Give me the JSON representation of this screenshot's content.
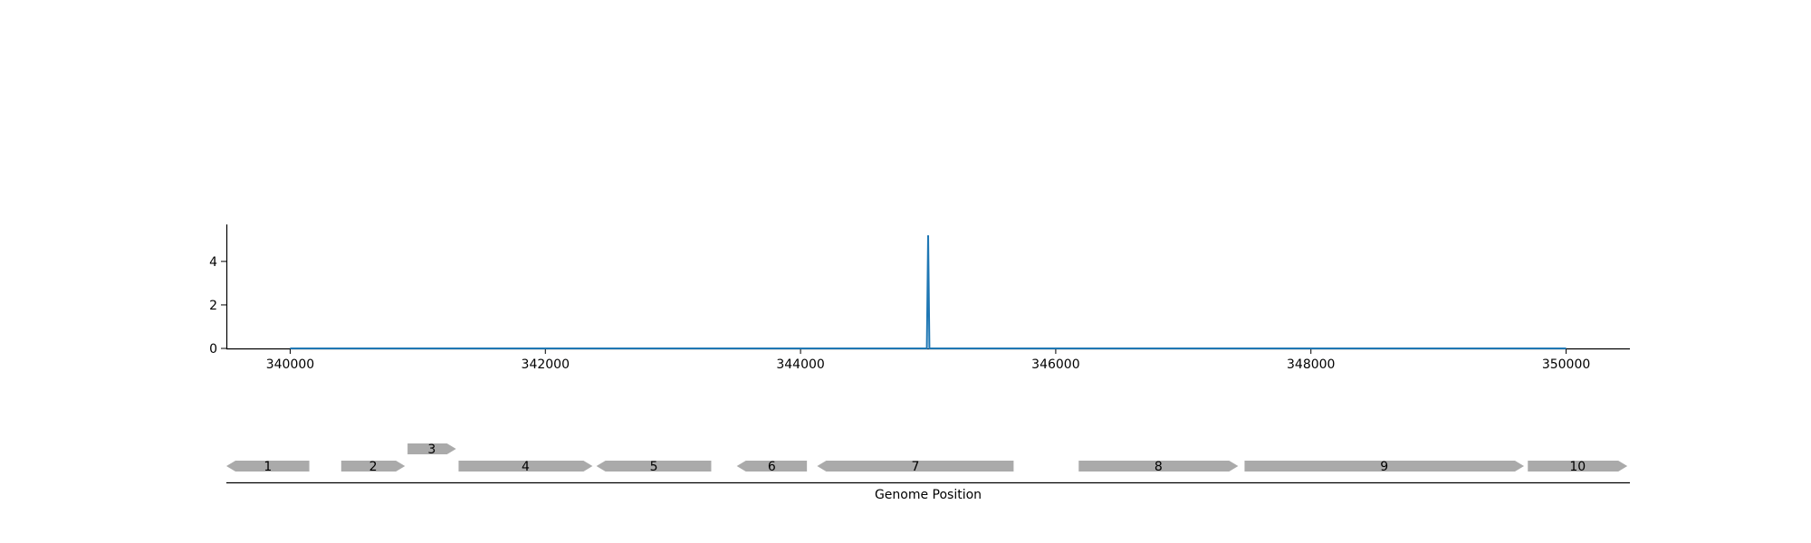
{
  "chart_data": [
    {
      "type": "line",
      "title": "",
      "xlabel": "",
      "ylabel": "",
      "xlim": [
        339500,
        350500
      ],
      "ylim": [
        0,
        5.7
      ],
      "x_ticks": [
        340000,
        342000,
        344000,
        346000,
        348000,
        350000
      ],
      "y_ticks": [
        0,
        2,
        4
      ],
      "grid": false,
      "series": [
        {
          "color": "#1f77b4",
          "points": [
            [
              340000,
              0
            ],
            [
              344990,
              0
            ],
            [
              345000,
              5.2
            ],
            [
              345010,
              0
            ],
            [
              350000,
              0
            ]
          ]
        }
      ]
    },
    {
      "type": "gene-map",
      "xlabel": "Genome Position",
      "xlim": [
        339500,
        350500
      ],
      "gene_color": "#aaaaaa",
      "genes": [
        {
          "label": "1",
          "start": 339500,
          "end": 340150,
          "strand": -1,
          "row": 0
        },
        {
          "label": "2",
          "start": 340400,
          "end": 340900,
          "strand": 1,
          "row": 0
        },
        {
          "label": "3",
          "start": 340920,
          "end": 341300,
          "strand": 1,
          "row": 1
        },
        {
          "label": "4",
          "start": 341320,
          "end": 342370,
          "strand": 1,
          "row": 0
        },
        {
          "label": "5",
          "start": 342400,
          "end": 343300,
          "strand": -1,
          "row": 0
        },
        {
          "label": "6",
          "start": 343500,
          "end": 344050,
          "strand": -1,
          "row": 0
        },
        {
          "label": "7",
          "start": 344130,
          "end": 345670,
          "strand": -1,
          "row": 0
        },
        {
          "label": "8",
          "start": 346180,
          "end": 347430,
          "strand": 1,
          "row": 0
        },
        {
          "label": "9",
          "start": 347480,
          "end": 349670,
          "strand": 1,
          "row": 0
        },
        {
          "label": "10",
          "start": 349700,
          "end": 350480,
          "strand": 1,
          "row": 0
        }
      ]
    }
  ]
}
